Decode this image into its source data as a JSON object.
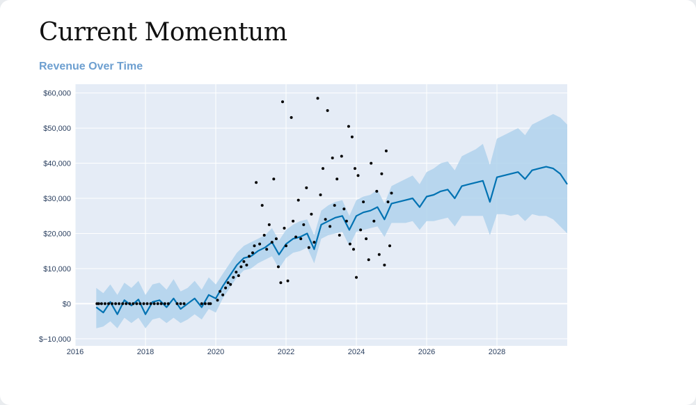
{
  "page": {
    "title": "Current Momentum"
  },
  "chart_data": {
    "type": "line",
    "title": "Revenue Over Time",
    "xlabel": "",
    "ylabel": "",
    "xlim": [
      2016,
      2030
    ],
    "ylim": [
      -12000,
      62500
    ],
    "x_ticks": [
      2016,
      2018,
      2020,
      2022,
      2024,
      2026,
      2028
    ],
    "y_ticks": [
      -10000,
      0,
      10000,
      20000,
      30000,
      40000,
      50000,
      60000
    ],
    "y_tick_labels": [
      "$−10,000",
      "$0",
      "$10,000",
      "$20,000",
      "$30,000",
      "$40,000",
      "$50,000",
      "$60,000"
    ],
    "grid": true,
    "colors": {
      "plot_bg": "#e5ecf6",
      "forecast_line": "#0072b2",
      "uncertainty_band": "#b0d2ec",
      "actual_points": "#000000",
      "grid": "#ffffff"
    },
    "series": [
      {
        "name": "",
        "kind": "forecast",
        "x": [
          2016.6,
          2016.8,
          2017.0,
          2017.2,
          2017.4,
          2017.6,
          2017.8,
          2018.0,
          2018.2,
          2018.4,
          2018.6,
          2018.8,
          2019.0,
          2019.2,
          2019.4,
          2019.6,
          2019.8,
          2020.0,
          2020.2,
          2020.4,
          2020.6,
          2020.8,
          2021.0,
          2021.2,
          2021.4,
          2021.6,
          2021.8,
          2022.0,
          2022.2,
          2022.4,
          2022.6,
          2022.8,
          2023.0,
          2023.2,
          2023.4,
          2023.6,
          2023.8,
          2024.0,
          2024.2,
          2024.4,
          2024.6,
          2024.8,
          2025.0,
          2025.2,
          2025.4,
          2025.6,
          2025.8,
          2026.0,
          2026.2,
          2026.4,
          2026.6,
          2026.8,
          2027.0,
          2027.2,
          2027.4,
          2027.6,
          2027.8,
          2028.0,
          2028.2,
          2028.4,
          2028.6,
          2028.8,
          2029.0,
          2029.2,
          2029.4,
          2029.6,
          2029.8,
          2030.0
        ],
        "y": [
          -1000,
          -2500,
          500,
          -3000,
          1000,
          -500,
          1200,
          -3000,
          500,
          1000,
          -1000,
          1500,
          -1500,
          0,
          1500,
          -1000,
          2500,
          1500,
          5000,
          8000,
          11000,
          13000,
          13500,
          15000,
          16000,
          17500,
          14000,
          17000,
          18500,
          19000,
          20000,
          15500,
          22500,
          23500,
          24500,
          25000,
          21000,
          25000,
          26000,
          26500,
          27500,
          24000,
          28500,
          29000,
          29500,
          30000,
          27500,
          30500,
          31000,
          32000,
          32500,
          30000,
          33500,
          34000,
          34500,
          35000,
          29000,
          36000,
          36500,
          37000,
          37500,
          35500,
          38000,
          38500,
          39000,
          38500,
          37000,
          34000
        ],
        "lower": [
          -7000,
          -6500,
          -5000,
          -7000,
          -4000,
          -5500,
          -4000,
          -7000,
          -4500,
          -4000,
          -5500,
          -4000,
          -5500,
          -4500,
          -3000,
          -4500,
          -1500,
          -2500,
          1500,
          4500,
          7500,
          9500,
          10000,
          11500,
          12500,
          13500,
          10000,
          13000,
          14500,
          15000,
          16000,
          11500,
          18500,
          19500,
          20000,
          20500,
          16500,
          20500,
          21000,
          21500,
          22000,
          19000,
          23000,
          23000,
          23000,
          23500,
          21000,
          23500,
          23500,
          24000,
          24500,
          22000,
          25000,
          25000,
          25000,
          25000,
          19500,
          25500,
          25500,
          25000,
          25500,
          23500,
          25500,
          25000,
          25000,
          24000,
          22000,
          20000
        ],
        "upper": [
          4500,
          3000,
          5500,
          2500,
          6000,
          4500,
          6500,
          2500,
          5500,
          6000,
          4000,
          7000,
          3500,
          4500,
          6500,
          4000,
          7500,
          5500,
          8500,
          11500,
          14500,
          16500,
          17500,
          18500,
          19500,
          21500,
          18000,
          21000,
          22500,
          23500,
          24000,
          19500,
          26500,
          28000,
          29000,
          29500,
          25000,
          29500,
          30500,
          31000,
          32500,
          28500,
          33500,
          34500,
          35500,
          36500,
          34000,
          37500,
          38500,
          40000,
          40500,
          38000,
          42000,
          43000,
          44000,
          45500,
          39500,
          47000,
          48000,
          49000,
          50000,
          48000,
          51000,
          52000,
          53000,
          54000,
          53000,
          51000
        ]
      },
      {
        "name": "",
        "kind": "actual",
        "points": [
          [
            2016.62,
            0
          ],
          [
            2016.67,
            0
          ],
          [
            2016.75,
            0
          ],
          [
            2016.85,
            0
          ],
          [
            2016.95,
            0
          ],
          [
            2017.05,
            0
          ],
          [
            2017.15,
            0
          ],
          [
            2017.25,
            0
          ],
          [
            2017.35,
            0
          ],
          [
            2017.45,
            0
          ],
          [
            2017.55,
            0
          ],
          [
            2017.65,
            0
          ],
          [
            2017.75,
            0
          ],
          [
            2017.85,
            0
          ],
          [
            2017.95,
            0
          ],
          [
            2018.05,
            0
          ],
          [
            2018.15,
            0
          ],
          [
            2018.25,
            0
          ],
          [
            2018.35,
            0
          ],
          [
            2018.45,
            0
          ],
          [
            2018.55,
            0
          ],
          [
            2018.65,
            0
          ],
          [
            2018.9,
            0
          ],
          [
            2019.0,
            0
          ],
          [
            2019.1,
            0
          ],
          [
            2019.6,
            0
          ],
          [
            2019.7,
            0
          ],
          [
            2019.8,
            0
          ],
          [
            2019.85,
            0
          ],
          [
            2020.05,
            1000
          ],
          [
            2020.12,
            3500
          ],
          [
            2020.2,
            2500
          ],
          [
            2020.28,
            4500
          ],
          [
            2020.35,
            6000
          ],
          [
            2020.42,
            5500
          ],
          [
            2020.5,
            7500
          ],
          [
            2020.58,
            9000
          ],
          [
            2020.65,
            8000
          ],
          [
            2020.72,
            10500
          ],
          [
            2020.8,
            12000
          ],
          [
            2020.88,
            11000
          ],
          [
            2020.95,
            13500
          ],
          [
            2021.05,
            14500
          ],
          [
            2021.1,
            16500
          ],
          [
            2021.15,
            34500
          ],
          [
            2021.25,
            17000
          ],
          [
            2021.32,
            28000
          ],
          [
            2021.38,
            19500
          ],
          [
            2021.45,
            15500
          ],
          [
            2021.52,
            22500
          ],
          [
            2021.6,
            17500
          ],
          [
            2021.65,
            35500
          ],
          [
            2021.72,
            18500
          ],
          [
            2021.78,
            10500
          ],
          [
            2021.85,
            6000
          ],
          [
            2021.9,
            57500
          ],
          [
            2021.95,
            21500
          ],
          [
            2022.0,
            16500
          ],
          [
            2022.05,
            6500
          ],
          [
            2022.15,
            53000
          ],
          [
            2022.2,
            23500
          ],
          [
            2022.28,
            19000
          ],
          [
            2022.35,
            29500
          ],
          [
            2022.42,
            18500
          ],
          [
            2022.5,
            22500
          ],
          [
            2022.58,
            33000
          ],
          [
            2022.65,
            16000
          ],
          [
            2022.72,
            25500
          ],
          [
            2022.8,
            17500
          ],
          [
            2022.9,
            58500
          ],
          [
            2022.98,
            31000
          ],
          [
            2023.05,
            38500
          ],
          [
            2023.12,
            24000
          ],
          [
            2023.18,
            55000
          ],
          [
            2023.25,
            22000
          ],
          [
            2023.32,
            41500
          ],
          [
            2023.38,
            28000
          ],
          [
            2023.45,
            35500
          ],
          [
            2023.52,
            19500
          ],
          [
            2023.58,
            42000
          ],
          [
            2023.65,
            27000
          ],
          [
            2023.72,
            23500
          ],
          [
            2023.78,
            50500
          ],
          [
            2023.82,
            17000
          ],
          [
            2023.88,
            47500
          ],
          [
            2023.92,
            15500
          ],
          [
            2023.96,
            38500
          ],
          [
            2024.0,
            7500
          ],
          [
            2024.05,
            36500
          ],
          [
            2024.12,
            21000
          ],
          [
            2024.2,
            29000
          ],
          [
            2024.28,
            18500
          ],
          [
            2024.35,
            12500
          ],
          [
            2024.42,
            40000
          ],
          [
            2024.5,
            23500
          ],
          [
            2024.58,
            32000
          ],
          [
            2024.65,
            14000
          ],
          [
            2024.72,
            37000
          ],
          [
            2024.8,
            11000
          ],
          [
            2024.85,
            43500
          ],
          [
            2024.9,
            29000
          ],
          [
            2024.95,
            16500
          ],
          [
            2025.0,
            31500
          ]
        ]
      }
    ]
  }
}
